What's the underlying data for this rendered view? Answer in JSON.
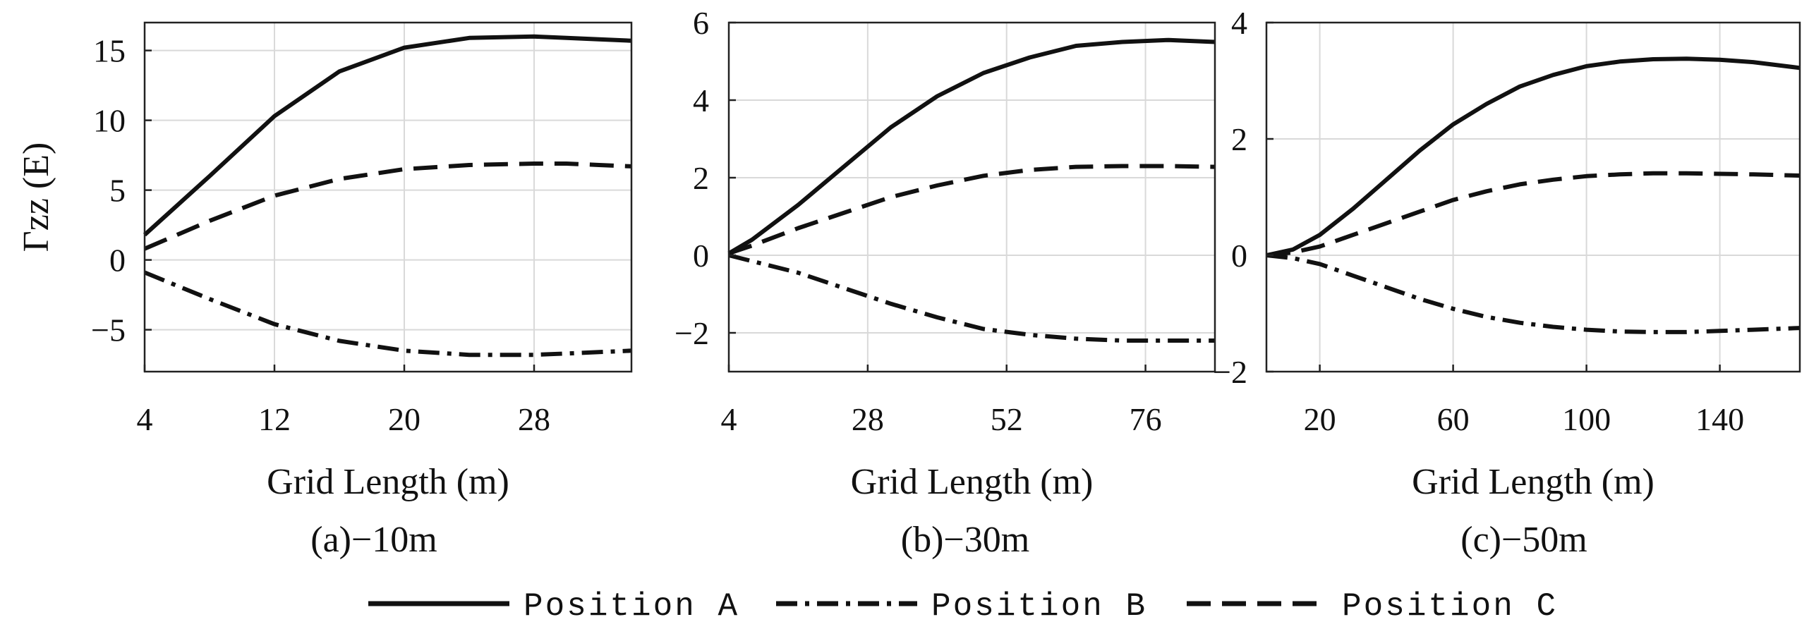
{
  "chart_data": [
    {
      "type": "line",
      "caption": "(a)−10m",
      "xlabel": "Grid Length (m)",
      "ylabel": "Γzz (E)",
      "xlim": [
        4,
        34
      ],
      "ylim": [
        -8,
        17
      ],
      "xticks": [
        4,
        12,
        20,
        28
      ],
      "yticks": [
        -5,
        0,
        5,
        10,
        15
      ],
      "ytick_labels": [
        "−5",
        "0",
        "5",
        "10",
        "15"
      ],
      "grid": true,
      "series": [
        {
          "name": "Position A",
          "x": [
            4,
            8,
            12,
            16,
            20,
            24,
            28,
            30,
            32,
            34
          ],
          "values": [
            1.8,
            6.0,
            10.3,
            13.5,
            15.2,
            15.9,
            16.0,
            15.9,
            15.8,
            15.7
          ]
        },
        {
          "name": "Position B",
          "x": [
            4,
            8,
            12,
            16,
            20,
            24,
            28,
            30,
            32,
            34
          ],
          "values": [
            -0.9,
            -2.8,
            -4.6,
            -5.8,
            -6.5,
            -6.8,
            -6.8,
            -6.7,
            -6.6,
            -6.5
          ]
        },
        {
          "name": "Position C",
          "x": [
            4,
            8,
            12,
            16,
            20,
            24,
            28,
            30,
            32,
            34
          ],
          "values": [
            0.8,
            2.8,
            4.6,
            5.8,
            6.5,
            6.8,
            6.9,
            6.9,
            6.8,
            6.7
          ]
        }
      ]
    },
    {
      "type": "line",
      "caption": "(b)−30m",
      "xlabel": "Grid Length (m)",
      "ylabel": "",
      "xlim": [
        4,
        88
      ],
      "ylim": [
        -3,
        6
      ],
      "xticks": [
        4,
        28,
        52,
        76
      ],
      "yticks": [
        -2,
        0,
        2,
        4,
        6
      ],
      "ytick_labels": [
        "−2",
        "0",
        "2",
        "4",
        "6"
      ],
      "grid": true,
      "series": [
        {
          "name": "Position A",
          "x": [
            4,
            8,
            16,
            24,
            32,
            40,
            48,
            56,
            64,
            72,
            80,
            88
          ],
          "values": [
            0.05,
            0.4,
            1.3,
            2.3,
            3.3,
            4.1,
            4.7,
            5.1,
            5.4,
            5.5,
            5.55,
            5.5
          ]
        },
        {
          "name": "Position B",
          "x": [
            4,
            8,
            16,
            24,
            32,
            40,
            48,
            56,
            64,
            72,
            80,
            88
          ],
          "values": [
            0.0,
            -0.15,
            -0.45,
            -0.85,
            -1.25,
            -1.6,
            -1.9,
            -2.05,
            -2.15,
            -2.2,
            -2.2,
            -2.2
          ]
        },
        {
          "name": "Position C",
          "x": [
            4,
            8,
            16,
            24,
            32,
            40,
            48,
            56,
            64,
            72,
            80,
            88
          ],
          "values": [
            0.05,
            0.25,
            0.7,
            1.1,
            1.5,
            1.8,
            2.05,
            2.2,
            2.28,
            2.3,
            2.3,
            2.28
          ]
        }
      ]
    },
    {
      "type": "line",
      "caption": "(c)−50m",
      "xlabel": "Grid Length (m)",
      "ylabel": "",
      "xlim": [
        4,
        164
      ],
      "ylim": [
        -2,
        4
      ],
      "xticks": [
        20,
        60,
        100,
        140
      ],
      "yticks": [
        -2,
        0,
        2,
        4
      ],
      "ytick_labels": [
        "−2",
        "0",
        "2",
        "4"
      ],
      "grid": true,
      "series": [
        {
          "name": "Position A",
          "x": [
            4,
            12,
            20,
            30,
            40,
            50,
            60,
            70,
            80,
            90,
            100,
            110,
            120,
            130,
            140,
            150,
            164
          ],
          "values": [
            0.0,
            0.1,
            0.35,
            0.8,
            1.3,
            1.8,
            2.25,
            2.6,
            2.9,
            3.1,
            3.25,
            3.33,
            3.37,
            3.38,
            3.36,
            3.32,
            3.22
          ]
        },
        {
          "name": "Position B",
          "x": [
            4,
            12,
            20,
            30,
            40,
            50,
            60,
            70,
            80,
            90,
            100,
            110,
            120,
            130,
            140,
            150,
            164
          ],
          "values": [
            0.0,
            -0.05,
            -0.15,
            -0.35,
            -0.55,
            -0.75,
            -0.92,
            -1.06,
            -1.16,
            -1.23,
            -1.28,
            -1.31,
            -1.32,
            -1.32,
            -1.3,
            -1.28,
            -1.25
          ]
        },
        {
          "name": "Position C",
          "x": [
            4,
            12,
            20,
            30,
            40,
            50,
            60,
            70,
            80,
            90,
            100,
            110,
            120,
            130,
            140,
            150,
            164
          ],
          "values": [
            0.0,
            0.05,
            0.15,
            0.35,
            0.55,
            0.75,
            0.95,
            1.1,
            1.22,
            1.3,
            1.36,
            1.39,
            1.41,
            1.41,
            1.4,
            1.39,
            1.37
          ]
        }
      ]
    }
  ],
  "legend": {
    "placement": "bottom-center",
    "entries": [
      {
        "label": "Position A",
        "style": "solid"
      },
      {
        "label": "Position B",
        "style": "dashdot"
      },
      {
        "label": "Position C",
        "style": "dashed"
      }
    ]
  }
}
